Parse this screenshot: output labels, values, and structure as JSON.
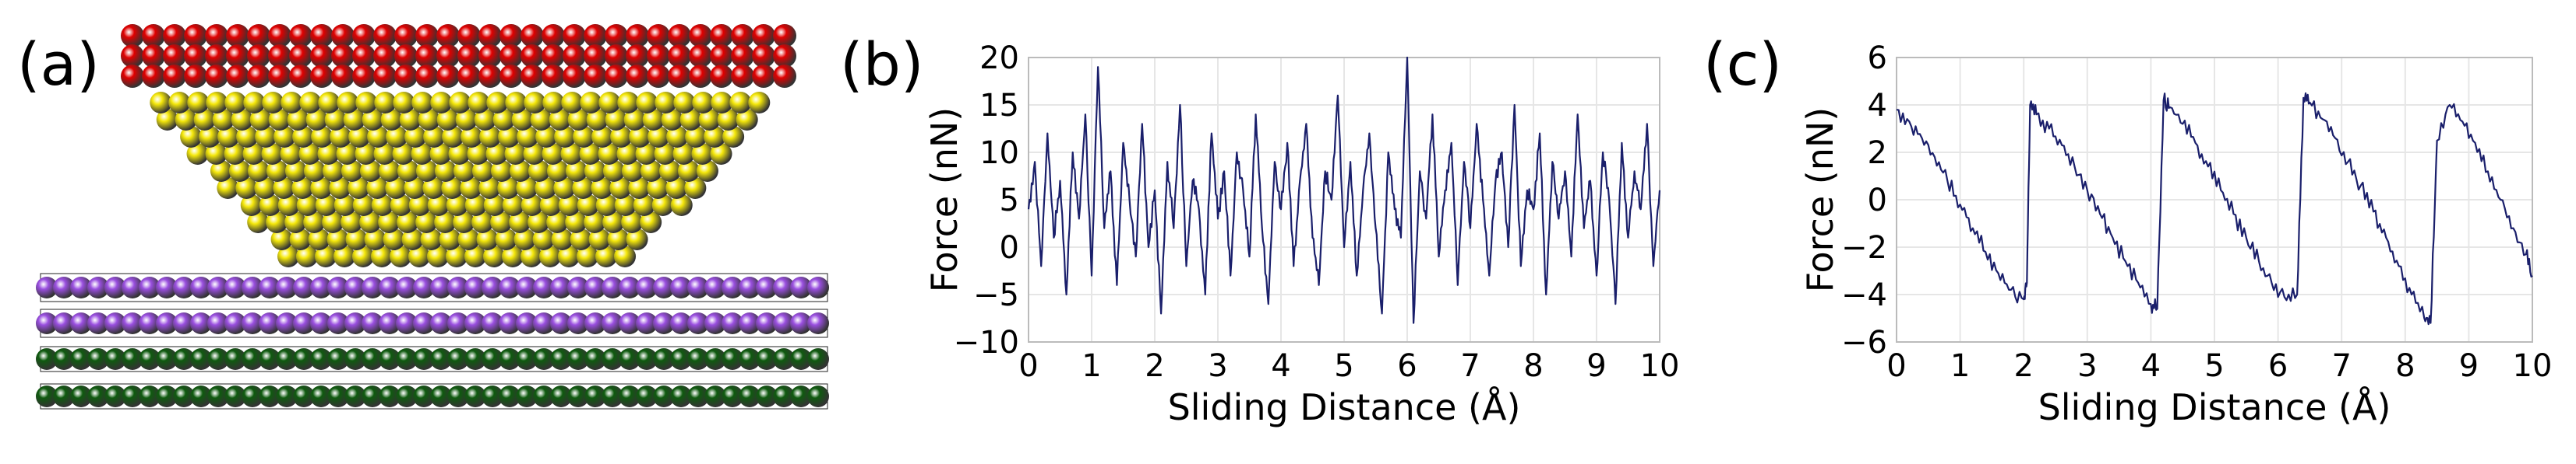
{
  "panels": {
    "a": {
      "label": "(a)"
    },
    "b": {
      "label": "(b)"
    },
    "c": {
      "label": "(c)"
    }
  },
  "colors": {
    "line": "#1a1f6b",
    "grid": "#e6e6e6",
    "tip_top": "#e00000",
    "tip_body": "#f5e80a",
    "substrate_upper": "#9a4fe0",
    "substrate_lower": "#0f5a0f"
  },
  "chart_data": [
    {
      "type": "line",
      "panel": "b",
      "xlabel": "Sliding Distance (Å)",
      "ylabel": "Force (nN)",
      "xlim": [
        0,
        10
      ],
      "ylim": [
        -10,
        20
      ],
      "xticks": [
        0,
        1,
        2,
        3,
        4,
        5,
        6,
        7,
        8,
        9,
        10
      ],
      "yticks": [
        -10,
        -5,
        0,
        5,
        10,
        15,
        20
      ],
      "grid": true,
      "description_of_signal": "noisy fluctuation around about 4 nN",
      "series": [
        {
          "x": [
            0,
            0.1,
            0.2,
            0.3,
            0.4,
            0.5,
            0.6,
            0.7,
            0.8,
            0.9,
            1,
            1.1,
            1.2,
            1.3,
            1.4,
            1.5,
            1.6,
            1.7,
            1.8,
            1.9,
            2,
            2.1,
            2.2,
            2.3,
            2.4,
            2.5,
            2.6,
            2.7,
            2.8,
            2.9,
            3,
            3.1,
            3.2,
            3.3,
            3.4,
            3.5,
            3.6,
            3.7,
            3.8,
            3.9,
            4,
            4.1,
            4.2,
            4.3,
            4.4,
            4.5,
            4.6,
            4.7,
            4.8,
            4.9,
            5,
            5.1,
            5.2,
            5.3,
            5.4,
            5.5,
            5.6,
            5.7,
            5.8,
            5.9,
            6,
            6.1,
            6.2,
            6.3,
            6.4,
            6.5,
            6.6,
            6.7,
            6.8,
            6.9,
            7,
            7.1,
            7.2,
            7.3,
            7.4,
            7.5,
            7.6,
            7.7,
            7.8,
            7.9,
            8,
            8.1,
            8.2,
            8.3,
            8.4,
            8.5,
            8.6,
            8.7,
            8.8,
            8.9,
            9,
            9.1,
            9.2,
            9.3,
            9.4,
            9.5,
            9.6,
            9.7,
            9.8,
            9.9,
            10
          ],
          "y": [
            4,
            9,
            -2,
            12,
            1,
            7,
            -5,
            10,
            3,
            14,
            -3,
            19,
            2,
            8,
            -4,
            11,
            5,
            -1,
            13,
            0,
            6,
            -7,
            9,
            2,
            15,
            -2,
            7,
            4,
            -5,
            12,
            3,
            8,
            -3,
            10,
            6,
            -1,
            14,
            2,
            -6,
            9,
            4,
            11,
            -2,
            7,
            13,
            1,
            -4,
            8,
            5,
            16,
            0,
            9,
            -3,
            6,
            12,
            2,
            -7,
            10,
            4,
            1,
            20,
            -8,
            8,
            3,
            14,
            -1,
            6,
            11,
            -4,
            9,
            2,
            13,
            5,
            -3,
            7,
            10,
            0,
            15,
            -2,
            6,
            4,
            12,
            -5,
            9,
            3,
            8,
            -1,
            14,
            2,
            7,
            -3,
            10,
            5,
            -6,
            11,
            1,
            8,
            4,
            13,
            -2,
            6
          ]
        }
      ]
    },
    {
      "type": "line",
      "panel": "c",
      "xlabel": "Sliding Distance (Å)",
      "ylabel": "Force (nN)",
      "xlim": [
        0,
        10
      ],
      "ylim": [
        -6,
        6
      ],
      "xticks": [
        0,
        1,
        2,
        3,
        4,
        5,
        6,
        7,
        8,
        9,
        10
      ],
      "yticks": [
        -6,
        -4,
        -2,
        0,
        2,
        4,
        6
      ],
      "grid": true,
      "description_of_signal": "stick-slip sawtooth with period of about 2.1 Å",
      "series": [
        {
          "x": [
            0,
            0.2,
            0.4,
            0.6,
            0.8,
            1.0,
            1.2,
            1.4,
            1.6,
            1.8,
            2.0,
            2.05,
            2.1,
            2.2,
            2.4,
            2.6,
            2.8,
            3.0,
            3.2,
            3.4,
            3.6,
            3.8,
            4.0,
            4.1,
            4.2,
            4.3,
            4.5,
            4.7,
            4.9,
            5.1,
            5.3,
            5.5,
            5.7,
            5.9,
            6.1,
            6.3,
            6.4,
            6.5,
            6.7,
            6.9,
            7.1,
            7.3,
            7.5,
            7.7,
            7.9,
            8.1,
            8.3,
            8.4,
            8.5,
            8.7,
            8.9,
            9.1,
            9.3,
            9.5,
            9.7,
            9.9,
            10
          ],
          "y": [
            3.8,
            3.3,
            2.6,
            1.8,
            0.8,
            -0.2,
            -1.2,
            -2.2,
            -3.1,
            -3.8,
            -4.2,
            -3.5,
            4.0,
            3.6,
            3.0,
            2.3,
            1.4,
            0.4,
            -0.6,
            -1.6,
            -2.6,
            -3.5,
            -4.4,
            -4.6,
            4.2,
            3.9,
            3.2,
            2.4,
            1.4,
            0.4,
            -0.6,
            -1.6,
            -2.6,
            -3.5,
            -4.1,
            -4.0,
            4.3,
            4.1,
            3.4,
            2.6,
            1.6,
            0.6,
            -0.5,
            -1.6,
            -2.8,
            -4.0,
            -5.0,
            -5.2,
            2.5,
            4.0,
            3.3,
            2.4,
            1.2,
            0.0,
            -1.2,
            -2.3,
            -3.2
          ]
        }
      ]
    }
  ]
}
